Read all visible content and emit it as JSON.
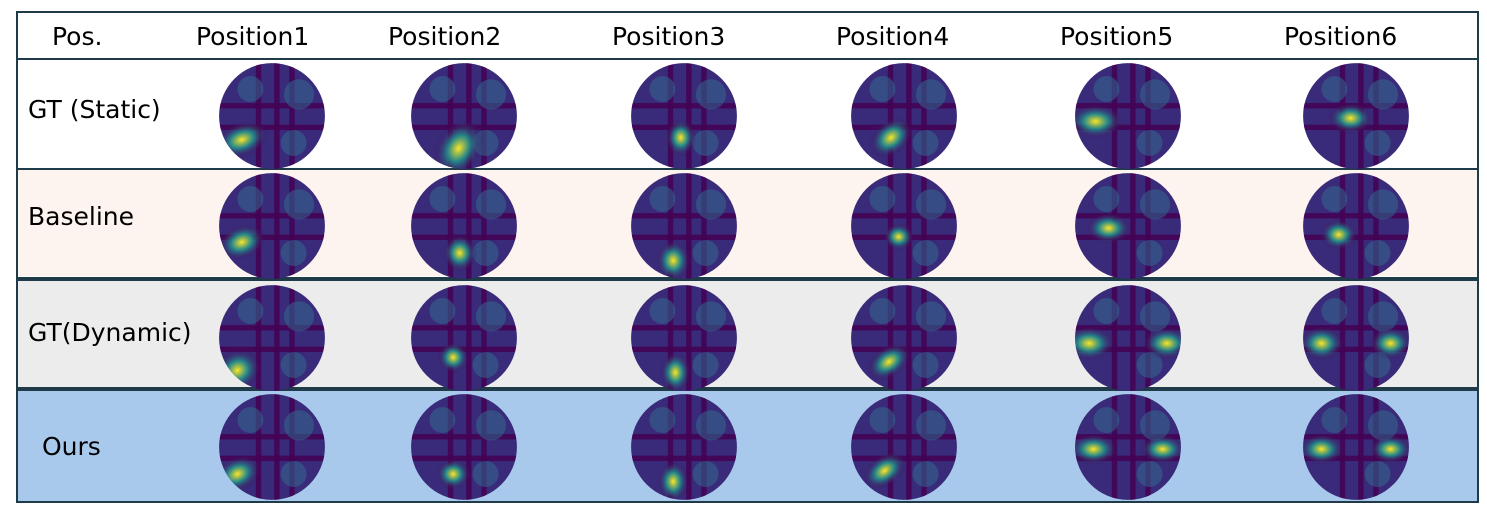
{
  "table": {
    "corner_label": "Pos.",
    "columns": [
      "Position1",
      "Position2",
      "Position3",
      "Position4",
      "Position5",
      "Position6"
    ],
    "rows": [
      {
        "label": "GT (Static)",
        "background": "#ffffff"
      },
      {
        "label": "Baseline",
        "background": "#fdf3ef"
      },
      {
        "label": "GT(Dynamic)",
        "background": "#ececec"
      },
      {
        "label": "Ours",
        "background": "#a8c9eb"
      }
    ]
  },
  "colormap": {
    "name": "viridis",
    "low": "#440154",
    "mid": "#21908c",
    "high": "#fde725"
  }
}
